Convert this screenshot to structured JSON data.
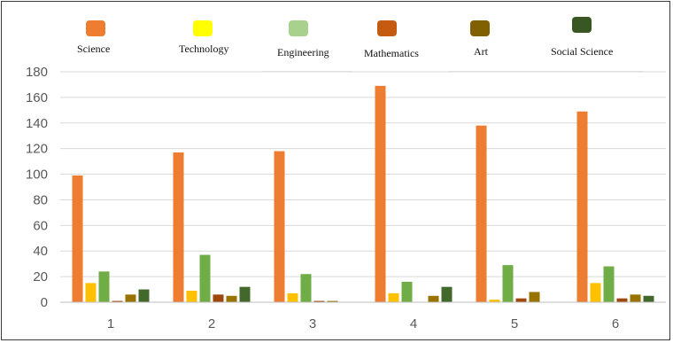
{
  "chart_data": {
    "type": "bar",
    "title": "",
    "xlabel": "",
    "ylabel": "",
    "categories": [
      "1",
      "2",
      "3",
      "4",
      "5",
      "6"
    ],
    "ylim": [
      0,
      180
    ],
    "yticks": [
      "0",
      "20",
      "40",
      "60",
      "80",
      "100",
      "120",
      "140",
      "160",
      "180"
    ],
    "grid": true,
    "legend_position": "top",
    "series": [
      {
        "name": "Science",
        "color": "#ED7D31",
        "values": [
          99,
          117,
          118,
          169,
          138,
          149
        ]
      },
      {
        "name": "Technology",
        "color": "#FFC000",
        "values": [
          15,
          9,
          7,
          7,
          2,
          15
        ]
      },
      {
        "name": "Engineering",
        "color": "#70AD47",
        "values": [
          24,
          37,
          22,
          16,
          29,
          28
        ]
      },
      {
        "name": "Mathematics",
        "color": "#9E480E",
        "values": [
          1,
          6,
          1,
          0,
          3,
          3
        ]
      },
      {
        "name": "Art",
        "color": "#997300",
        "values": [
          6,
          5,
          1,
          5,
          8,
          6
        ]
      },
      {
        "name": "Social Science",
        "color": "#43682B",
        "values": [
          10,
          12,
          0,
          12,
          0,
          5
        ]
      }
    ]
  },
  "legend": {
    "items": [
      {
        "label": "Science",
        "color": "#EE7C31"
      },
      {
        "label": "Technology",
        "color": "#FFFF00"
      },
      {
        "label": "Engineering",
        "color": "#A9D18E"
      },
      {
        "label": "Mathematics",
        "color": "#C55A11"
      },
      {
        "label": "Art",
        "color": "#806000"
      },
      {
        "label": "Social Science",
        "color": "#385723"
      }
    ]
  }
}
